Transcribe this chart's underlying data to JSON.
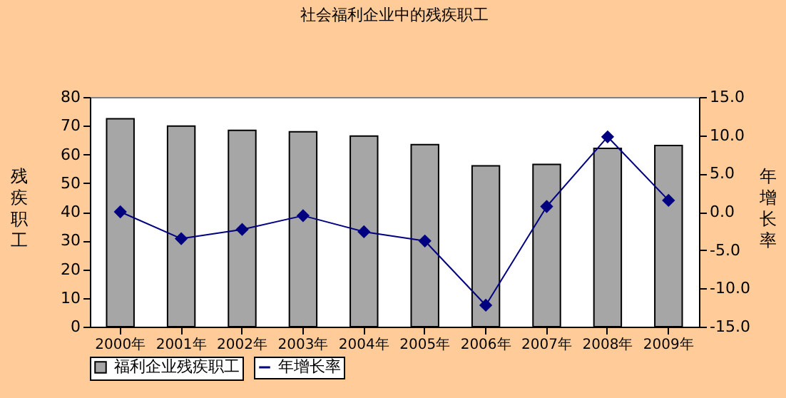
{
  "chart_data": {
    "type": "bar",
    "title": "社会福利企业中的残疾职工",
    "ylabel": "残疾职工",
    "y2label": "年增长率",
    "categories": [
      "2000年",
      "2001年",
      "2002年",
      "2003年",
      "2004年",
      "2005年",
      "2006年",
      "2007年",
      "2008年",
      "2009年"
    ],
    "series": [
      {
        "name": "福利企业残疾职工",
        "color": "#a6a6a6",
        "values": [
          72.4,
          69.9,
          68.4,
          67.9,
          66.4,
          63.4,
          56.0,
          56.5,
          62.1,
          63.1
        ]
      },
      {
        "name": "年增长率",
        "type": "line",
        "axis": "y2",
        "color": "#000080",
        "marker": "diamond",
        "values": [
          0.0,
          -3.5,
          -2.3,
          -0.5,
          -2.6,
          -3.8,
          -12.2,
          0.7,
          9.8,
          1.5
        ]
      }
    ],
    "ylim": [
      0,
      80
    ],
    "yticks": [
      0,
      10,
      20,
      30,
      40,
      50,
      60,
      70,
      80
    ],
    "y2lim": [
      -15,
      15
    ],
    "y2ticks": [
      {
        "value": -15,
        "label": "-15.0"
      },
      {
        "value": -10,
        "label": "-10.0"
      },
      {
        "value": -5,
        "label": "-5.0"
      },
      {
        "value": 0,
        "label": "0.0"
      },
      {
        "value": 5,
        "label": "5.0"
      },
      {
        "value": 10,
        "label": "10.0"
      },
      {
        "value": 15,
        "label": "15.0"
      }
    ],
    "grid": false,
    "legend": "bottom"
  }
}
